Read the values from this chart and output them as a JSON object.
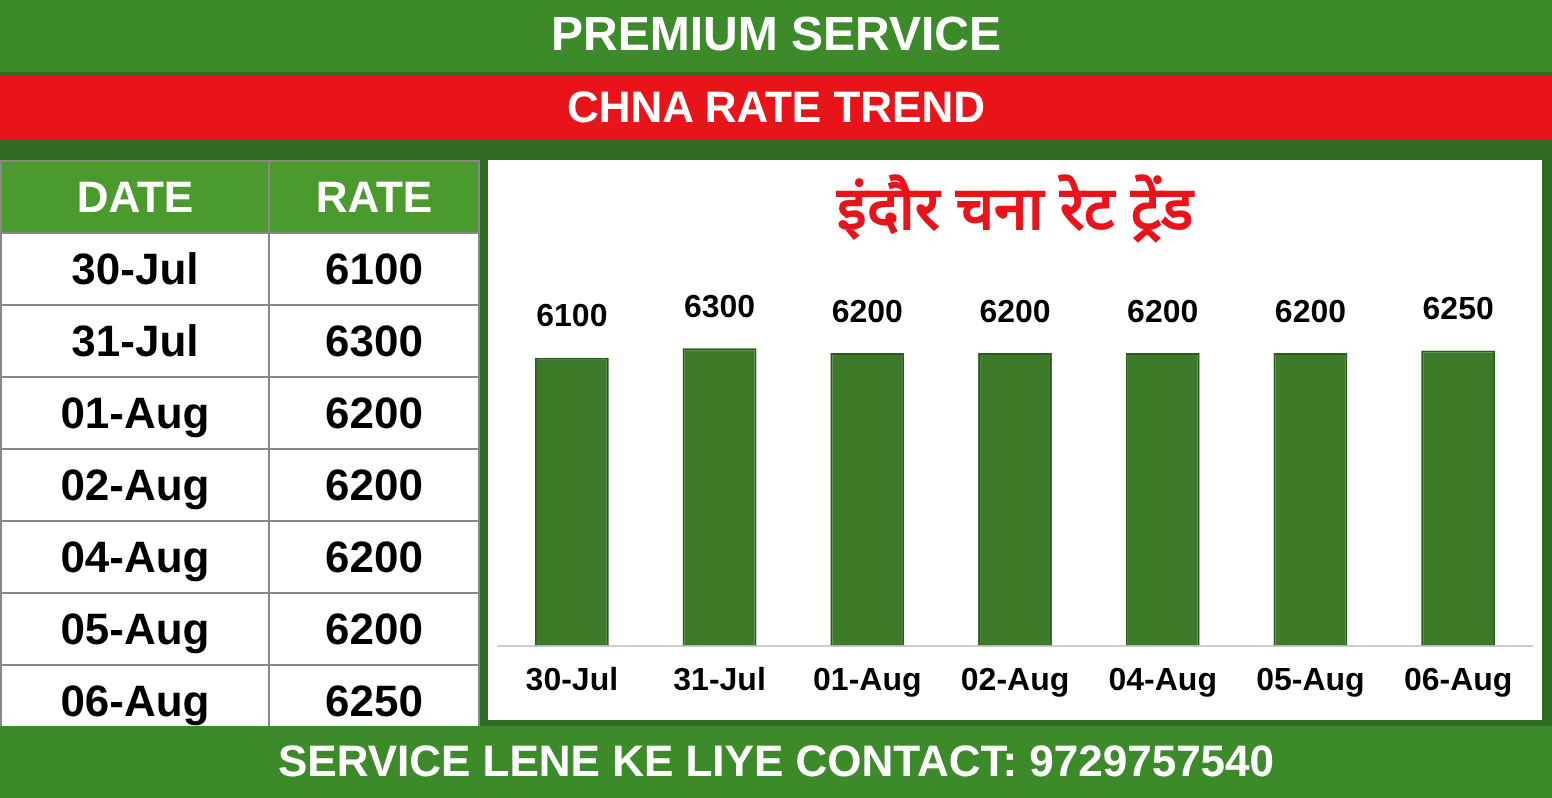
{
  "chart_data": [
    {
      "type": "other",
      "categories": [
        "30-Jul",
        "31-Jul",
        "01-Aug",
        "02-Aug",
        "04-Aug",
        "05-Aug",
        "06-Aug"
      ],
      "values": [
        6100,
        6300,
        6200,
        6200,
        6200,
        6200,
        6250
      ],
      "data_labels": true,
      "annotations": [
        "DATE",
        "RATE"
      ]
    },
    {
      "type": "bar",
      "title": "इंदौर चना रेट ट्रेंड",
      "subtitle": "CHNA RATE TREND",
      "categories": [
        "30-Jul",
        "31-Jul",
        "01-Aug",
        "02-Aug",
        "04-Aug",
        "05-Aug",
        "06-Aug"
      ],
      "values": [
        6100,
        6300,
        6200,
        6200,
        6200,
        6200,
        6250
      ],
      "color": "#3d7a2a",
      "tick_labels": "x",
      "grid": false,
      "legend": false,
      "data_labels": true,
      "annotations": [
        "PREMIUM SERVICE",
        "SERVICE LENE KE LIYE CONTACT: 9729757540"
      ]
    }
  ]
}
